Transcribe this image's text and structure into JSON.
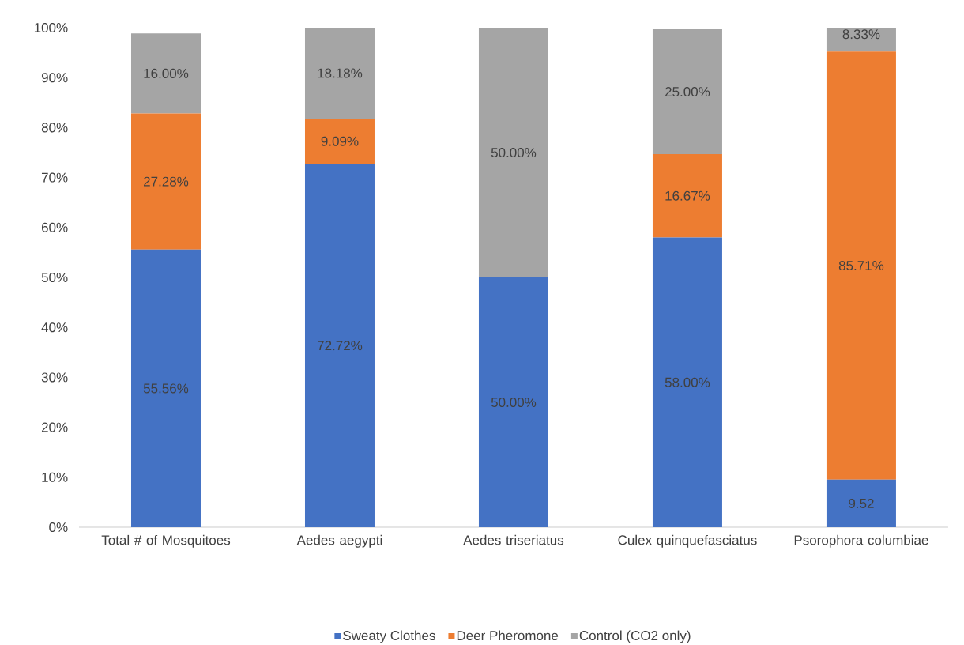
{
  "chart_data": {
    "type": "bar",
    "stacked": true,
    "legend": "bottom",
    "categories": [
      "Total # of Mosquitoes",
      "Aedes aegypti",
      "Aedes triseriatus",
      "Culex quinquefasciatus",
      "Psorophora columbiae"
    ],
    "series": [
      {
        "name": "Sweaty Clothes",
        "color": "#4472c4",
        "values": [
          55.56,
          72.72,
          50.0,
          58.0,
          9.52
        ],
        "value_labels": [
          "55.56%",
          "72.72%",
          "50.00%",
          "58.00%",
          "9.52"
        ]
      },
      {
        "name": "Deer Pheromone",
        "color": "#ed7d31",
        "values": [
          27.28,
          9.09,
          0,
          16.67,
          85.71
        ],
        "value_labels": [
          "27.28%",
          "9.09%",
          null,
          "16.67%",
          "85.71%"
        ]
      },
      {
        "name": "Control (CO2 only)",
        "color": "#a5a5a5",
        "values": [
          16.0,
          18.18,
          50.0,
          25.0,
          4.77
        ],
        "value_labels": [
          "16.00%",
          "18.18%",
          "50.00%",
          "25.00%",
          null
        ]
      }
    ],
    "annotations": [
      {
        "text": "8.33%",
        "x": "Psorophora columbiae",
        "y": 100
      }
    ],
    "ylim": [
      0,
      100
    ],
    "yticks": [
      {
        "value": 0,
        "label": "0%"
      },
      {
        "value": 10,
        "label": "10%"
      },
      {
        "value": 20,
        "label": "20%"
      },
      {
        "value": 30,
        "label": "30%"
      },
      {
        "value": 40,
        "label": "40%"
      },
      {
        "value": 50,
        "label": "50%"
      },
      {
        "value": 60,
        "label": "60%"
      },
      {
        "value": 70,
        "label": "70%"
      },
      {
        "value": 80,
        "label": "80%"
      },
      {
        "value": 90,
        "label": "90%"
      },
      {
        "value": 100,
        "label": "100%"
      }
    ]
  }
}
